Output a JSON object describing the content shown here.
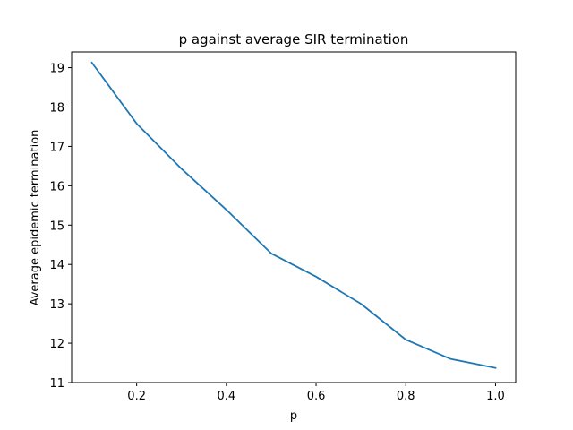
{
  "chart_data": {
    "type": "line",
    "title": "p against average SIR termination",
    "xlabel": "p",
    "ylabel": "Average epidemic termination",
    "xlim": [
      0.055,
      1.045
    ],
    "ylim": [
      11.0,
      19.4
    ],
    "xticks": [
      0.2,
      0.4,
      0.6,
      0.8,
      1.0
    ],
    "xtick_labels": [
      "0.2",
      "0.4",
      "0.6",
      "0.8",
      "1.0"
    ],
    "yticks": [
      11,
      12,
      13,
      14,
      15,
      16,
      17,
      18,
      19
    ],
    "ytick_labels": [
      "11",
      "12",
      "13",
      "14",
      "15",
      "16",
      "17",
      "18",
      "19"
    ],
    "grid": false,
    "legend": "none",
    "series": [
      {
        "color": "#1f77b4",
        "x": [
          0.1,
          0.2,
          0.3,
          0.4,
          0.5,
          0.6,
          0.7,
          0.8,
          0.9,
          1.0
        ],
        "y": [
          19.13,
          17.58,
          16.43,
          15.39,
          14.28,
          13.69,
          13.0,
          12.09,
          11.6,
          11.37
        ]
      }
    ]
  }
}
